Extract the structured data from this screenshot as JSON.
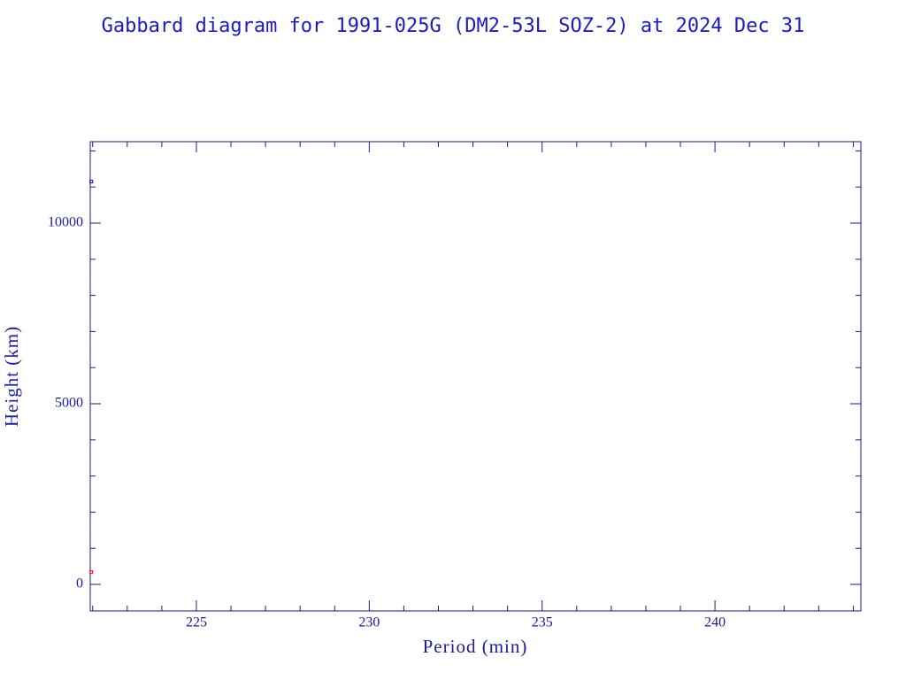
{
  "chart_data": {
    "type": "scatter",
    "title": "Gabbard diagram for 1991-025G (DM2-53L SOZ-2) at 2024 Dec 31",
    "x_label": "Period (min)",
    "y_label": "Height (km)",
    "xlim": [
      221.93,
      244.22
    ],
    "ylim": [
      -735,
      12255
    ],
    "xticks": [
      225,
      230,
      235,
      240
    ],
    "yticks": [
      0,
      5000,
      10000
    ],
    "xminorticks": [
      222,
      223,
      224,
      226,
      227,
      228,
      229,
      231,
      232,
      233,
      234,
      236,
      237,
      238,
      239,
      241,
      242,
      243,
      244
    ],
    "yminorticks": [
      1000,
      2000,
      3000,
      4000,
      6000,
      7000,
      8000,
      9000,
      11000,
      12000
    ],
    "series": [
      {
        "color": "#0000ff",
        "x": [
          221.96
        ],
        "values": [
          11150
        ]
      },
      {
        "color": "#ff0000",
        "x": [
          221.96
        ],
        "values": [
          340
        ]
      }
    ]
  }
}
